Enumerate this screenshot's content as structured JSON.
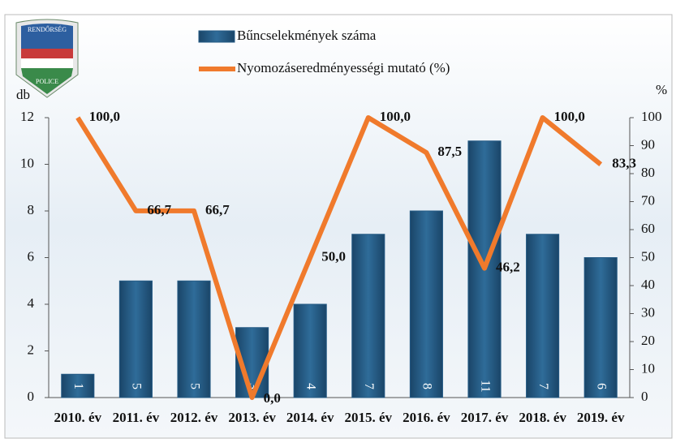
{
  "logo": {
    "top": "RENDŐRSÉG",
    "bottom": "POLICE"
  },
  "chart_data": {
    "type": "bar-line",
    "y_label": "db",
    "y2_label": "%",
    "categories": [
      "2010. év",
      "2011. év",
      "2012. év",
      "2013. év",
      "2014. év",
      "2015. év",
      "2016. év",
      "2017. év",
      "2018. év",
      "2019. év"
    ],
    "series": [
      {
        "name": "Bűncselekmények száma",
        "type": "bar",
        "color": "#245a84",
        "values": [
          1,
          5,
          5,
          3,
          4,
          7,
          8,
          11,
          7,
          6
        ]
      },
      {
        "name": "Nyomozáseredményességi mutató (%)",
        "type": "line",
        "axis": "y2",
        "color": "#f07a2c",
        "values": [
          100,
          66.7,
          66.7,
          0,
          50,
          100,
          87.5,
          46.2,
          100,
          83.3
        ],
        "value_labels": [
          "100,0",
          "66,7",
          "66,7",
          "0,0",
          "50,0",
          "100,0",
          "87,5",
          "46,2",
          "100,0",
          "83,3"
        ]
      }
    ],
    "ylim": [
      0,
      12
    ],
    "yticks": [
      0,
      2,
      4,
      6,
      8,
      10,
      12
    ],
    "y2lim": [
      0,
      100
    ],
    "y2ticks": [
      0,
      10,
      20,
      30,
      40,
      50,
      60,
      70,
      80,
      90,
      100
    ]
  }
}
